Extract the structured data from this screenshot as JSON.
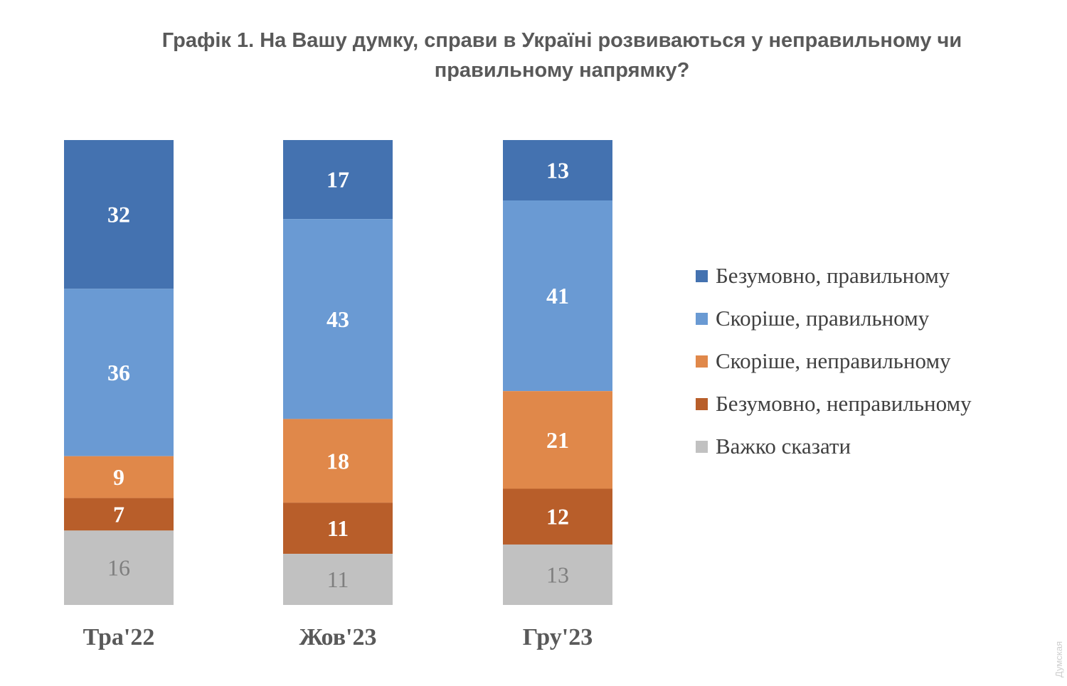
{
  "title": {
    "line1": "Графік 1. На Вашу думку, справи в Україні розвиваються у неправильному чи",
    "line2": "правильному напрямку?"
  },
  "watermark": "Думская",
  "chart_data": {
    "type": "bar",
    "stacked": true,
    "categories": [
      "Тра'22",
      "Жов'23",
      "Гру'23"
    ],
    "series": [
      {
        "name": "Безумовно, правильному",
        "color": "#4472b0",
        "label_color": "#ffffff",
        "values": [
          32,
          17,
          13
        ]
      },
      {
        "name": "Скоріше, правильному",
        "color": "#6a9ad3",
        "label_color": "#ffffff",
        "values": [
          36,
          43,
          41
        ]
      },
      {
        "name": "Скоріше, неправильному",
        "color": "#e0884a",
        "label_color": "#ffffff",
        "values": [
          9,
          18,
          21
        ]
      },
      {
        "name": "Безумовно, неправильному",
        "color": "#b85e2a",
        "label_color": "#ffffff",
        "values": [
          7,
          11,
          12
        ]
      },
      {
        "name": "Важко сказати",
        "color": "#c1c1c1",
        "label_color": "#7f7f7f",
        "values": [
          16,
          11,
          13
        ]
      }
    ],
    "legend_position": "right",
    "grid": false,
    "axes_visible": false
  }
}
